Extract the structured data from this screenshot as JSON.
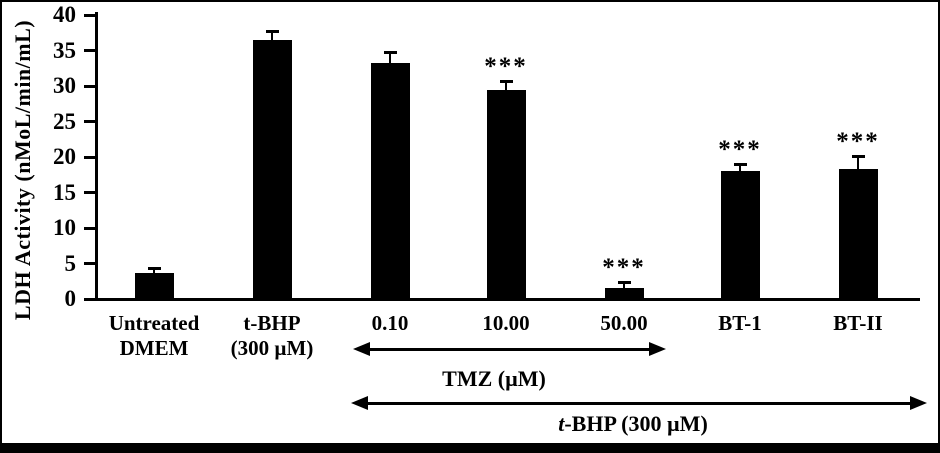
{
  "chart_data": {
    "type": "bar",
    "title": "",
    "xlabel": "",
    "ylabel": "LDH Activity (nMoL/min/mL)",
    "ylim": [
      0,
      40
    ],
    "yticks": [
      0,
      5,
      10,
      15,
      20,
      25,
      30,
      35,
      40
    ],
    "grid": false,
    "legend": "none",
    "bar_color": "#000000",
    "background_color": "#ffffff",
    "categories": [
      {
        "lines": [
          "Untreated",
          "DMEM"
        ]
      },
      {
        "lines": [
          "t-BHP",
          "(300 µM)"
        ]
      },
      {
        "lines": [
          "0.10"
        ]
      },
      {
        "lines": [
          "10.00"
        ]
      },
      {
        "lines": [
          "50.00"
        ]
      },
      {
        "lines": [
          "BT-1"
        ]
      },
      {
        "lines": [
          "BT-II"
        ]
      }
    ],
    "series": [
      {
        "name": "LDH Activity (nMoL/min/mL)",
        "values": [
          3.6,
          36.5,
          33.3,
          29.5,
          1.5,
          18.0,
          18.3
        ]
      }
    ],
    "error_bars_plus": [
      0.8,
      1.3,
      1.5,
      1.2,
      0.9,
      1.0,
      1.9
    ],
    "significance_labels": [
      "",
      "",
      "",
      "***",
      "***",
      "***",
      "***"
    ],
    "annotations": [
      {
        "id": "tmz-range",
        "arrow": "double-headed",
        "label": "TMZ (µM)",
        "spans_categories": [
          "0.10",
          "50.00"
        ]
      },
      {
        "id": "tbhp-range",
        "arrow": "double-headed",
        "label_italic": "t",
        "label_rest": "-BHP (300 µM)",
        "spans_categories": [
          "0.10",
          "BT-II"
        ]
      }
    ]
  }
}
